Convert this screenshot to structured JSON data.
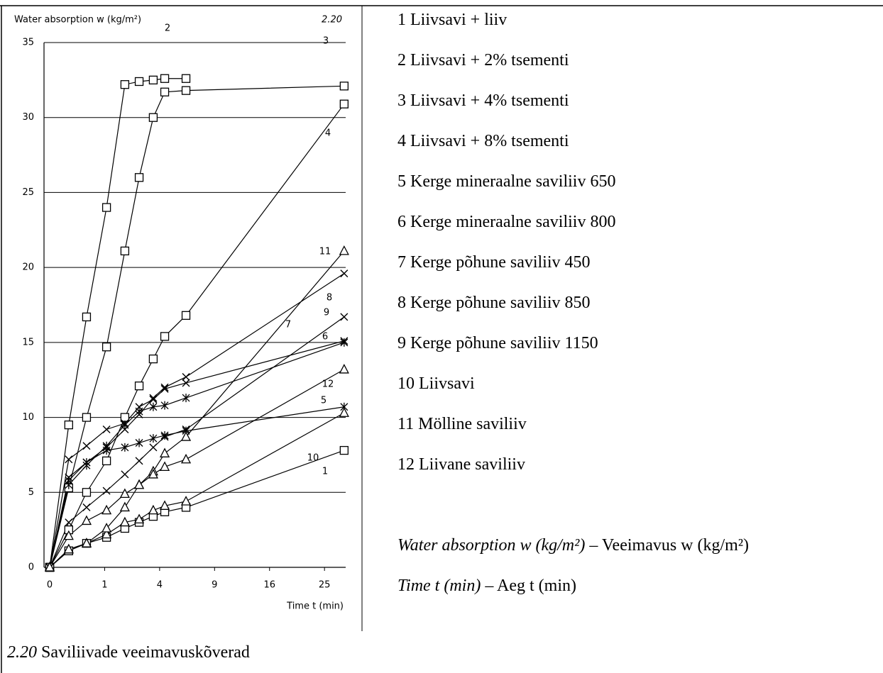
{
  "figure": {
    "number": "2.20",
    "caption": "Saviliivade veeimavuskõverad"
  },
  "chart_data": {
    "type": "line",
    "title": "Water absorption w (kg/m²)",
    "x_label": "Time t (min)",
    "x_scale": "sqrt",
    "xlim": [
      0,
      29
    ],
    "xticks": [
      0,
      1,
      4,
      9,
      16,
      25
    ],
    "ylim": [
      0,
      35
    ],
    "yticks": [
      0,
      5,
      10,
      15,
      20,
      25,
      30,
      35
    ],
    "grid": true,
    "x": [
      0,
      0.12,
      0.45,
      1.07,
      1.87,
      2.65,
      3.55,
      4.38,
      6.15,
      28.7
    ],
    "series": [
      {
        "label": "1",
        "name": "Liivsavi + liiv",
        "marker": "square",
        "color": "#000000",
        "values": [
          0,
          1.1,
          1.6,
          2.0,
          2.6,
          3.0,
          3.4,
          3.7,
          4.0,
          7.8
        ]
      },
      {
        "label": "2",
        "name": "Liivsavi + 2% tsementi",
        "marker": "square",
        "color": "#000000",
        "values": [
          0,
          9.5,
          16.7,
          24.0,
          32.2,
          32.4,
          32.5,
          32.6,
          32.6,
          null
        ]
      },
      {
        "label": "3",
        "name": "Liivsavi + 4% tsementi",
        "marker": "square",
        "color": "#000000",
        "values": [
          0,
          5.3,
          10.0,
          14.7,
          21.1,
          26.0,
          30.0,
          31.7,
          31.8,
          32.1
        ]
      },
      {
        "label": "4",
        "name": "Liivsavi + 8% tsementi",
        "marker": "square",
        "color": "#000000",
        "values": [
          0,
          2.5,
          5.0,
          7.1,
          10.0,
          12.1,
          13.9,
          15.4,
          16.8,
          30.9
        ]
      },
      {
        "label": "5",
        "name": "Kerge mineraalne saviliiv 650",
        "marker": "asterisk",
        "color": "#000000",
        "values": [
          0,
          5.8,
          7.0,
          7.8,
          8.0,
          8.3,
          8.6,
          8.8,
          9.1,
          10.7
        ]
      },
      {
        "label": "6",
        "name": "Kerge mineraalne saviliiv 800",
        "marker": "asterisk",
        "color": "#000000",
        "values": [
          0,
          5.5,
          6.8,
          8.1,
          9.5,
          10.4,
          10.7,
          10.8,
          11.3,
          15.0
        ]
      },
      {
        "label": "7",
        "name": "Kerge põhune saviliiv 450",
        "marker": "cross",
        "color": "#000000",
        "values": [
          0,
          7.2,
          8.1,
          9.2,
          9.6,
          10.7,
          11.2,
          11.9,
          12.3,
          15.1
        ]
      },
      {
        "label": "8",
        "name": "Kerge põhune saviliiv 850",
        "marker": "cross",
        "color": "#000000",
        "values": [
          0,
          6.0,
          7.0,
          8.0,
          9.2,
          10.2,
          11.3,
          12.0,
          12.7,
          19.6
        ]
      },
      {
        "label": "9",
        "name": "Kerge põhune saviliiv 1150",
        "marker": "cross",
        "color": "#000000",
        "values": [
          0,
          3.0,
          4.0,
          5.1,
          6.2,
          7.1,
          8.0,
          8.7,
          9.2,
          16.7
        ]
      },
      {
        "label": "10",
        "name": "Liivsavi",
        "marker": "triangle",
        "color": "#000000",
        "values": [
          0,
          1.2,
          1.6,
          2.2,
          3.0,
          3.2,
          3.8,
          4.1,
          4.4,
          10.3
        ]
      },
      {
        "label": "11",
        "name": "Mölline saviliiv",
        "marker": "triangle",
        "color": "#000000",
        "values": [
          0,
          1.2,
          1.6,
          2.6,
          4.0,
          5.5,
          6.4,
          7.6,
          8.7,
          21.1
        ]
      },
      {
        "label": "12",
        "name": "Liivane saviliiv",
        "marker": "triangle",
        "color": "#000000",
        "values": [
          0,
          2.1,
          3.1,
          3.8,
          4.9,
          5.5,
          6.2,
          6.7,
          7.2,
          13.2
        ]
      }
    ]
  },
  "notes": [
    {
      "term": "Water absorption w (kg/m²)",
      "translation": "– Veeimavus w (kg/m²)"
    },
    {
      "term": "Time t (min)",
      "translation": "– Aeg t (min)"
    }
  ]
}
